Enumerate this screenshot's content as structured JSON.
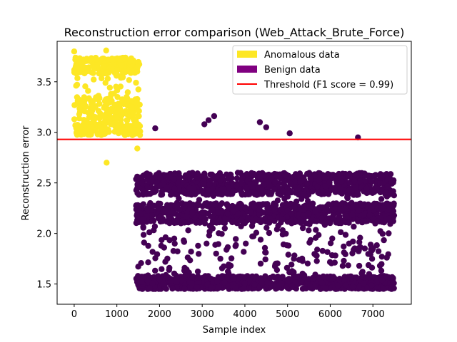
{
  "chart_data": {
    "type": "scatter",
    "title": "Reconstruction error comparison (Web_Attack_Brute_Force)",
    "xlabel": "Sample index",
    "ylabel": "Reconstruction error",
    "xlim": [
      -400,
      7900
    ],
    "ylim": [
      1.3,
      3.9
    ],
    "xticks": [
      0,
      1000,
      2000,
      3000,
      4000,
      5000,
      6000,
      7000
    ],
    "yticks": [
      1.5,
      2.0,
      2.5,
      3.0,
      3.5
    ],
    "xtick_labels": [
      "0",
      "1000",
      "2000",
      "3000",
      "4000",
      "5000",
      "6000",
      "7000"
    ],
    "ytick_labels": [
      "1.5",
      "2.0",
      "2.5",
      "3.0",
      "3.5"
    ],
    "legend_position": "top-right",
    "legend": [
      {
        "label": "Anomalous data",
        "color": "#fde725",
        "kind": "patch"
      },
      {
        "label": "Benign data",
        "color": "#800080",
        "kind": "patch"
      },
      {
        "label": "Threshold (F1 score = 0.99)",
        "color": "#ff0000",
        "kind": "line"
      }
    ],
    "threshold": {
      "y": 2.93,
      "color": "#ff0000"
    },
    "series": [
      {
        "color": "#fde725",
        "x_range": [
          0,
          1550
        ],
        "bands": [
          [
            3.58,
            3.74
          ],
          [
            3.12,
            3.35
          ],
          [
            2.97,
            3.1
          ]
        ],
        "outliers": [
          [
            0,
            3.8
          ],
          [
            750,
            3.81
          ],
          [
            760,
            2.7
          ],
          [
            1480,
            2.84
          ]
        ]
      },
      {
        "color": "#440154",
        "x_range": [
          1450,
          7500
        ],
        "bands": [
          [
            2.38,
            2.6
          ],
          [
            2.1,
            2.3
          ],
          [
            1.45,
            1.58
          ]
        ],
        "outliers": [
          [
            1900,
            3.04
          ],
          [
            3150,
            3.12
          ],
          [
            3280,
            3.16
          ],
          [
            3050,
            3.08
          ],
          [
            4350,
            3.1
          ],
          [
            4500,
            3.05
          ],
          [
            5050,
            2.99
          ],
          [
            6650,
            2.95
          ]
        ]
      }
    ]
  }
}
